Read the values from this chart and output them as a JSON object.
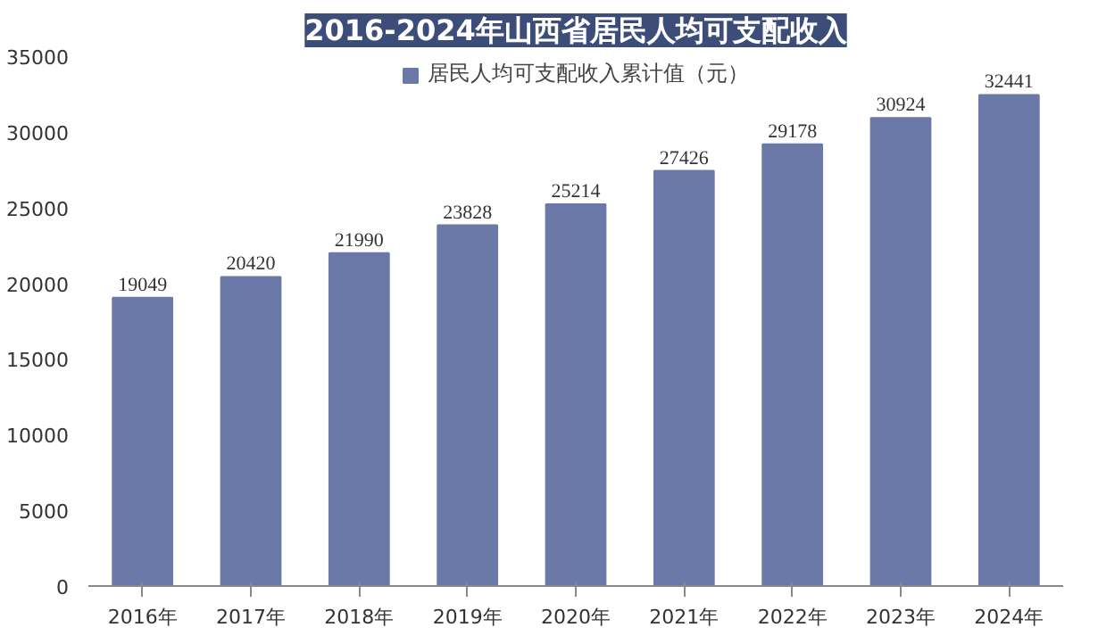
{
  "chart_data": {
    "type": "bar",
    "title": "2016-2024年山西省居民人均可支配收入",
    "categories": [
      "2016年",
      "2017年",
      "2018年",
      "2019年",
      "2020年",
      "2021年",
      "2022年",
      "2023年",
      "2024年"
    ],
    "series": [
      {
        "name": "居民人均可支配收入累计值（元）",
        "color": "#6b79a8",
        "values": [
          19049,
          20420,
          21990,
          23828,
          25214,
          27426,
          29178,
          30924,
          32441
        ]
      }
    ],
    "ylim": [
      0,
      35000
    ],
    "yticks": [
      0,
      5000,
      10000,
      15000,
      20000,
      25000,
      30000,
      35000
    ],
    "grid": false,
    "legend": "top",
    "data_labels": true
  }
}
